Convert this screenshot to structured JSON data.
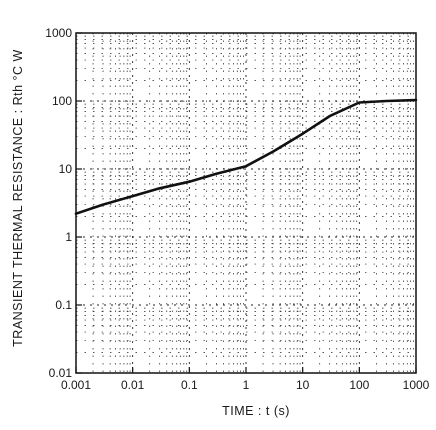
{
  "chart_data": {
    "type": "line",
    "title": "",
    "xlabel": "TIME : t (s)",
    "ylabel": "TRANSIENT THERMAL RESISTANCE : Rth °C W",
    "x_scale": "log",
    "y_scale": "log",
    "xlim": [
      0.001,
      1000
    ],
    "ylim": [
      0.01,
      1000
    ],
    "x_tick_labels": [
      "0.001",
      "0.01",
      "0.1",
      "1",
      "10",
      "100",
      "1000"
    ],
    "y_tick_labels": [
      "0.01",
      "0.1",
      "1",
      "10",
      "100",
      "1000"
    ],
    "grid": true,
    "colors": {
      "line": "#111111",
      "grid": "#222222",
      "frame": "#111111"
    },
    "series": [
      {
        "x": [
          0.001,
          0.003,
          0.01,
          0.03,
          0.1,
          0.3,
          1,
          3,
          10,
          30,
          100,
          300,
          1000
        ],
        "values": [
          2.2,
          3.0,
          4.0,
          5.2,
          6.5,
          8.5,
          11,
          18,
          33,
          60,
          95,
          100,
          103
        ]
      }
    ]
  }
}
